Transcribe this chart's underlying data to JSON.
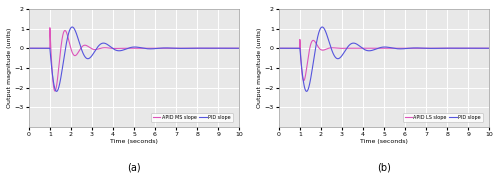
{
  "title_a": "(a)",
  "title_b": "(b)",
  "xlabel": "Time (seconds)",
  "ylabel": "Output magnitude (units)",
  "xlim": [
    0,
    10
  ],
  "ylim": [
    -4,
    2
  ],
  "yticks": [
    -3,
    -2,
    -1,
    0,
    1,
    2
  ],
  "xticks": [
    0,
    1,
    2,
    3,
    4,
    5,
    6,
    7,
    8,
    9,
    10
  ],
  "legend_a": [
    "PID slope",
    "APID MS slope"
  ],
  "legend_b": [
    "PID slope",
    "APID LS slope"
  ],
  "pid_color": "#5555dd",
  "apid_ms_color": "#dd55bb",
  "apid_ls_color": "#dd55bb",
  "background_color": "#e8e8e8",
  "grid_color": "white",
  "linewidth": 0.8
}
